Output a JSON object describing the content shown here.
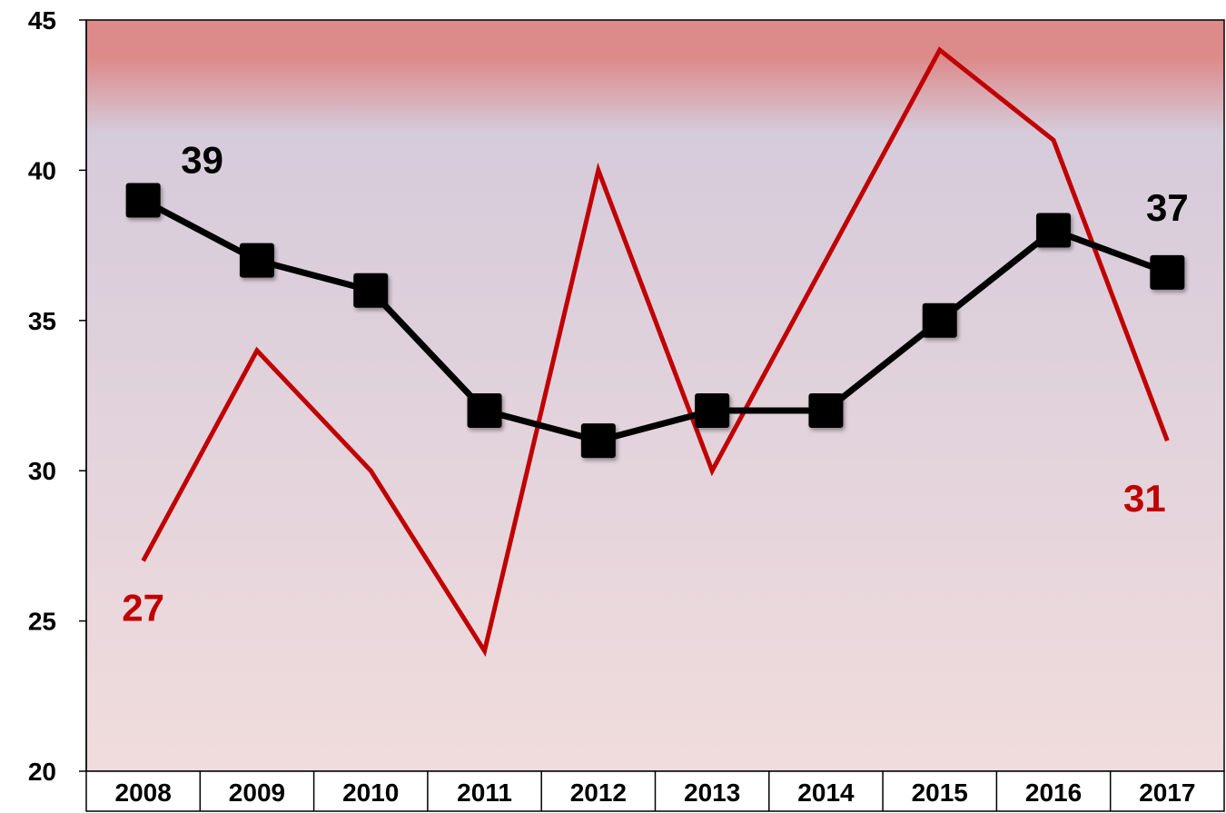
{
  "chart_data": {
    "type": "line",
    "categories": [
      "2008",
      "2009",
      "2010",
      "2011",
      "2012",
      "2013",
      "2014",
      "2015",
      "2016",
      "2017"
    ],
    "ylim": [
      20,
      45
    ],
    "yticks": [
      "20",
      "25",
      "30",
      "35",
      "40",
      "45"
    ],
    "grid": false,
    "legend": "none",
    "series": [
      {
        "color": "#000000",
        "marker": "square",
        "values": [
          39,
          37,
          36,
          32,
          31,
          32,
          32,
          35,
          38,
          36.6
        ]
      },
      {
        "color": "#c00000",
        "marker": "none",
        "values": [
          27,
          34,
          30,
          24,
          40,
          30,
          37,
          44,
          41,
          31
        ]
      }
    ],
    "annotations": [
      {
        "text": "39",
        "series": 0,
        "category": "2008",
        "color": "#000000"
      },
      {
        "text": "37",
        "series": 0,
        "category": "2017",
        "color": "#000000"
      },
      {
        "text": "27",
        "series": 1,
        "category": "2008",
        "color": "#c00000"
      },
      {
        "text": "31",
        "series": 1,
        "category": "2017",
        "color": "#c00000"
      }
    ],
    "background": {
      "gradient_top": "#dc8a8a",
      "gradient_mid": "#d6cbdb",
      "gradient_bottom": "#f0dcdc"
    }
  }
}
